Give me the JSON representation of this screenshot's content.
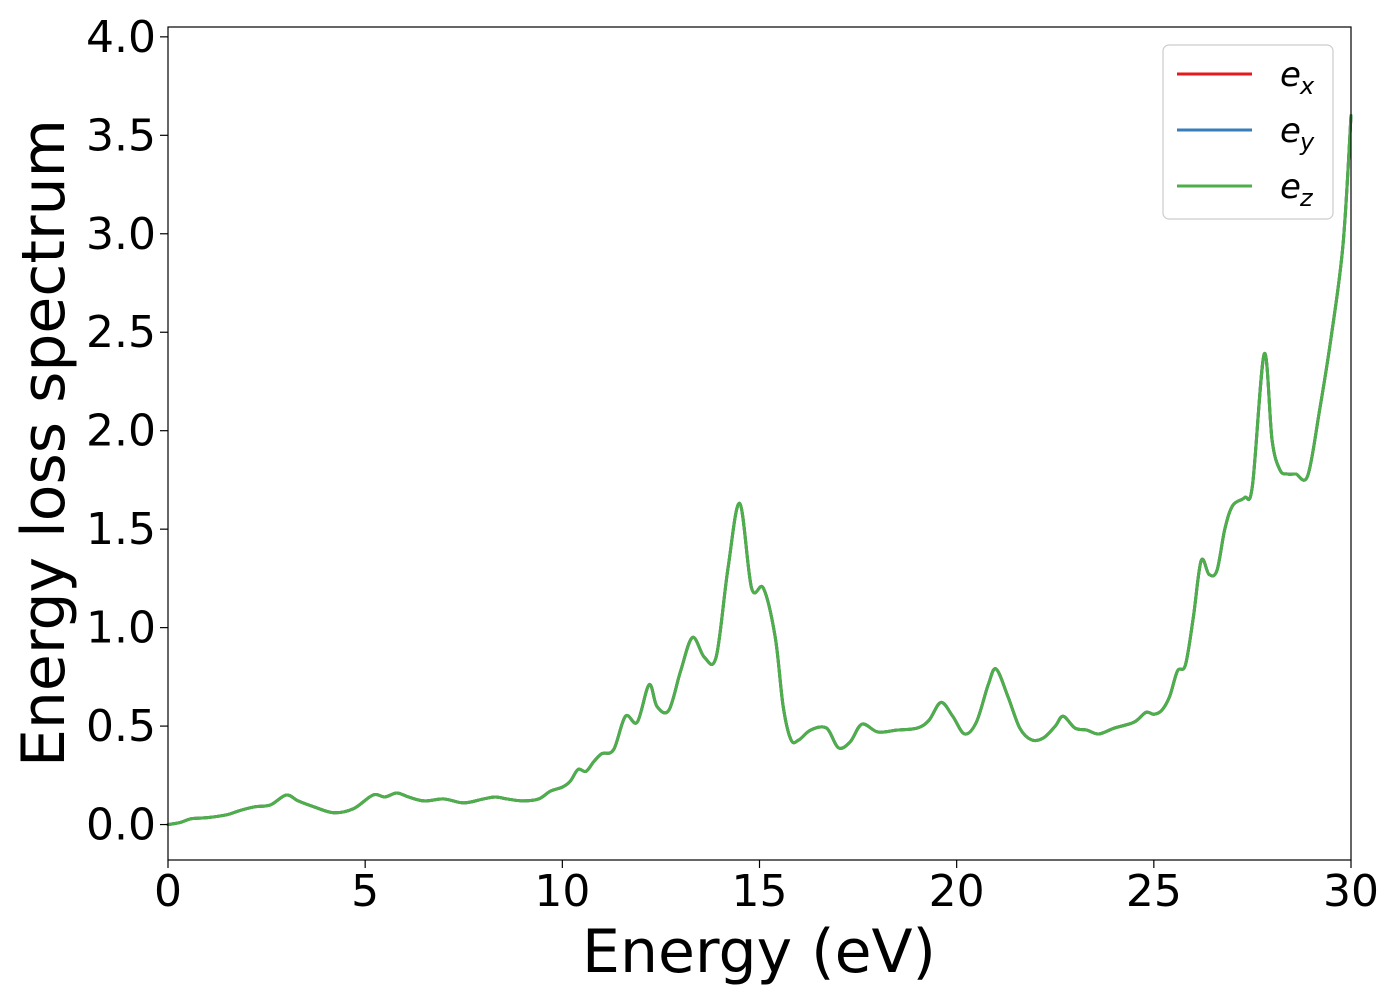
{
  "chart_data": {
    "type": "line",
    "xlabel": "Energy (eV)",
    "ylabel": "Energy loss spectrum",
    "xlim": [
      0,
      30
    ],
    "ylim": [
      -0.18,
      4.05
    ],
    "xticks": [
      0,
      5,
      10,
      15,
      20,
      25,
      30
    ],
    "yticks": [
      0.0,
      0.5,
      1.0,
      1.5,
      2.0,
      2.5,
      3.0,
      3.5,
      4.0
    ],
    "xtick_labels": [
      "0",
      "5",
      "10",
      "15",
      "20",
      "25",
      "30"
    ],
    "ytick_labels": [
      "0.0",
      "0.5",
      "1.0",
      "1.5",
      "2.0",
      "2.5",
      "3.0",
      "3.5",
      "4.0"
    ],
    "grid": false,
    "legend_position": "top-right",
    "x": [
      0,
      0.3,
      0.6,
      1.0,
      1.5,
      1.8,
      2.2,
      2.6,
      3.0,
      3.3,
      3.7,
      4.2,
      4.7,
      5.2,
      5.5,
      5.8,
      6.1,
      6.5,
      7.0,
      7.5,
      8.0,
      8.3,
      8.6,
      9.0,
      9.4,
      9.7,
      10.0,
      10.2,
      10.4,
      10.6,
      10.8,
      11.0,
      11.3,
      11.6,
      11.9,
      12.2,
      12.4,
      12.7,
      13.0,
      13.3,
      13.6,
      13.9,
      14.2,
      14.5,
      14.8,
      15.1,
      15.4,
      15.6,
      15.8,
      16.0,
      16.3,
      16.7,
      17.0,
      17.3,
      17.6,
      18.0,
      18.5,
      19.0,
      19.3,
      19.6,
      19.9,
      20.2,
      20.5,
      20.8,
      21.0,
      21.3,
      21.6,
      21.9,
      22.2,
      22.5,
      22.7,
      23.0,
      23.3,
      23.6,
      24.0,
      24.5,
      24.8,
      25.0,
      25.2,
      25.4,
      25.6,
      25.8,
      26.0,
      26.2,
      26.4,
      26.6,
      26.8,
      27.0,
      27.3,
      27.5,
      27.8,
      28.0,
      28.2,
      28.4,
      28.6,
      28.9,
      29.2,
      29.5,
      29.8,
      30.0
    ],
    "series": [
      {
        "name": "e_x",
        "color": "#e41a1c",
        "values": [
          0.0,
          0.01,
          0.03,
          0.035,
          0.05,
          0.07,
          0.09,
          0.1,
          0.15,
          0.12,
          0.09,
          0.06,
          0.08,
          0.15,
          0.14,
          0.16,
          0.14,
          0.12,
          0.13,
          0.11,
          0.13,
          0.14,
          0.13,
          0.12,
          0.13,
          0.17,
          0.19,
          0.22,
          0.28,
          0.27,
          0.32,
          0.36,
          0.38,
          0.55,
          0.52,
          0.71,
          0.6,
          0.58,
          0.78,
          0.95,
          0.85,
          0.85,
          1.3,
          1.63,
          1.2,
          1.2,
          0.95,
          0.6,
          0.43,
          0.43,
          0.48,
          0.49,
          0.39,
          0.42,
          0.51,
          0.47,
          0.48,
          0.49,
          0.53,
          0.62,
          0.55,
          0.46,
          0.52,
          0.71,
          0.79,
          0.65,
          0.49,
          0.43,
          0.44,
          0.5,
          0.55,
          0.49,
          0.48,
          0.46,
          0.49,
          0.52,
          0.57,
          0.56,
          0.58,
          0.65,
          0.78,
          0.81,
          1.05,
          1.34,
          1.27,
          1.29,
          1.5,
          1.62,
          1.66,
          1.72,
          2.39,
          1.95,
          1.8,
          1.78,
          1.78,
          1.77,
          2.1,
          2.48,
          2.95,
          3.6
        ]
      },
      {
        "name": "e_y",
        "color": "#377eb8",
        "values": [
          0.0,
          0.01,
          0.03,
          0.035,
          0.05,
          0.07,
          0.09,
          0.1,
          0.15,
          0.12,
          0.09,
          0.06,
          0.08,
          0.15,
          0.14,
          0.16,
          0.14,
          0.12,
          0.13,
          0.11,
          0.13,
          0.14,
          0.13,
          0.12,
          0.13,
          0.17,
          0.19,
          0.22,
          0.28,
          0.27,
          0.32,
          0.36,
          0.38,
          0.55,
          0.52,
          0.71,
          0.6,
          0.58,
          0.78,
          0.95,
          0.85,
          0.85,
          1.3,
          1.63,
          1.2,
          1.2,
          0.95,
          0.6,
          0.43,
          0.43,
          0.48,
          0.49,
          0.39,
          0.42,
          0.51,
          0.47,
          0.48,
          0.49,
          0.53,
          0.62,
          0.55,
          0.46,
          0.52,
          0.71,
          0.79,
          0.65,
          0.49,
          0.43,
          0.44,
          0.5,
          0.55,
          0.49,
          0.48,
          0.46,
          0.49,
          0.52,
          0.57,
          0.56,
          0.58,
          0.65,
          0.78,
          0.81,
          1.05,
          1.34,
          1.27,
          1.29,
          1.5,
          1.62,
          1.66,
          1.72,
          2.39,
          1.95,
          1.8,
          1.78,
          1.78,
          1.77,
          2.1,
          2.48,
          2.95,
          3.6
        ]
      },
      {
        "name": "e_z",
        "color": "#4daf4a",
        "values": [
          0.0,
          0.01,
          0.03,
          0.035,
          0.05,
          0.07,
          0.09,
          0.1,
          0.15,
          0.12,
          0.09,
          0.06,
          0.08,
          0.15,
          0.14,
          0.16,
          0.14,
          0.12,
          0.13,
          0.11,
          0.13,
          0.14,
          0.13,
          0.12,
          0.13,
          0.17,
          0.19,
          0.22,
          0.28,
          0.27,
          0.32,
          0.36,
          0.38,
          0.55,
          0.52,
          0.71,
          0.6,
          0.58,
          0.78,
          0.95,
          0.85,
          0.85,
          1.3,
          1.63,
          1.2,
          1.2,
          0.95,
          0.6,
          0.43,
          0.43,
          0.48,
          0.49,
          0.39,
          0.42,
          0.51,
          0.47,
          0.48,
          0.49,
          0.53,
          0.62,
          0.55,
          0.46,
          0.52,
          0.71,
          0.79,
          0.65,
          0.49,
          0.43,
          0.44,
          0.5,
          0.55,
          0.49,
          0.48,
          0.46,
          0.49,
          0.52,
          0.57,
          0.56,
          0.58,
          0.65,
          0.78,
          0.81,
          1.05,
          1.34,
          1.27,
          1.29,
          1.5,
          1.62,
          1.66,
          1.72,
          2.39,
          1.95,
          1.8,
          1.78,
          1.78,
          1.77,
          2.1,
          2.48,
          2.95,
          3.6
        ]
      }
    ],
    "legend": [
      {
        "base": "e",
        "sub": "x",
        "color": "#e41a1c"
      },
      {
        "base": "e",
        "sub": "y",
        "color": "#377eb8"
      },
      {
        "base": "e",
        "sub": "z",
        "color": "#4daf4a"
      }
    ]
  }
}
